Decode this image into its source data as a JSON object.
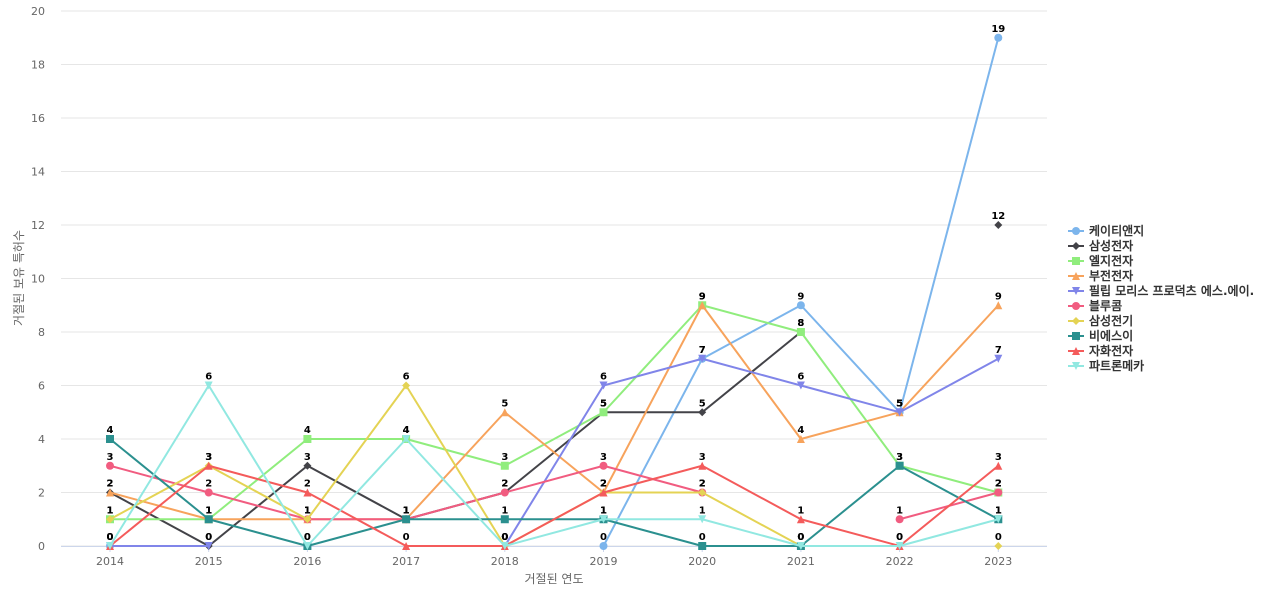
{
  "chart_data": {
    "type": "line",
    "xlabel": "거절된 연도",
    "ylabel": "거절된 보유 특허수",
    "ylim": [
      0,
      20
    ],
    "yticks": [
      0,
      2,
      4,
      6,
      8,
      10,
      12,
      14,
      16,
      18,
      20
    ],
    "categories": [
      "2014",
      "2015",
      "2016",
      "2017",
      "2018",
      "2019",
      "2020",
      "2021",
      "2022",
      "2023"
    ],
    "grid": true,
    "legend_position": "right",
    "series": [
      {
        "name": "케이티앤지",
        "color": "#7cb5ec",
        "marker": "circle",
        "values": [
          0,
          null,
          null,
          null,
          null,
          0,
          7,
          9,
          5,
          19
        ]
      },
      {
        "name": "삼성전자",
        "color": "#434348",
        "marker": "diamond",
        "values": [
          2,
          0,
          3,
          1,
          2,
          5,
          5,
          8,
          null,
          12
        ]
      },
      {
        "name": "엘지전자",
        "color": "#90ed7d",
        "marker": "square",
        "values": [
          1,
          1,
          4,
          4,
          3,
          5,
          9,
          8,
          3,
          2
        ]
      },
      {
        "name": "부전전자",
        "color": "#f7a35c",
        "marker": "triangle",
        "values": [
          2,
          1,
          1,
          1,
          5,
          2,
          9,
          4,
          5,
          9
        ]
      },
      {
        "name": "필립 모리스 프로덕츠 에스.에이.",
        "color": "#8085e9",
        "marker": "triangle-down",
        "values": [
          0,
          0,
          null,
          null,
          0,
          6,
          7,
          6,
          5,
          7
        ]
      },
      {
        "name": "블루콤",
        "color": "#f15c80",
        "marker": "circle",
        "values": [
          3,
          2,
          1,
          1,
          2,
          3,
          2,
          null,
          1,
          2
        ]
      },
      {
        "name": "삼성전기",
        "color": "#e4d354",
        "marker": "diamond",
        "values": [
          1,
          3,
          1,
          6,
          0,
          2,
          2,
          0,
          null,
          0
        ]
      },
      {
        "name": "비에스이",
        "color": "#2b908f",
        "marker": "square",
        "values": [
          4,
          1,
          0,
          1,
          1,
          1,
          0,
          0,
          3,
          1
        ]
      },
      {
        "name": "자화전자",
        "color": "#f45b5b",
        "marker": "triangle",
        "values": [
          0,
          3,
          2,
          0,
          0,
          2,
          3,
          1,
          0,
          3
        ]
      },
      {
        "name": "파트론메카",
        "color": "#91e8e1",
        "marker": "triangle-down",
        "values": [
          0,
          6,
          0,
          4,
          0,
          1,
          1,
          0,
          0,
          1
        ]
      }
    ]
  }
}
